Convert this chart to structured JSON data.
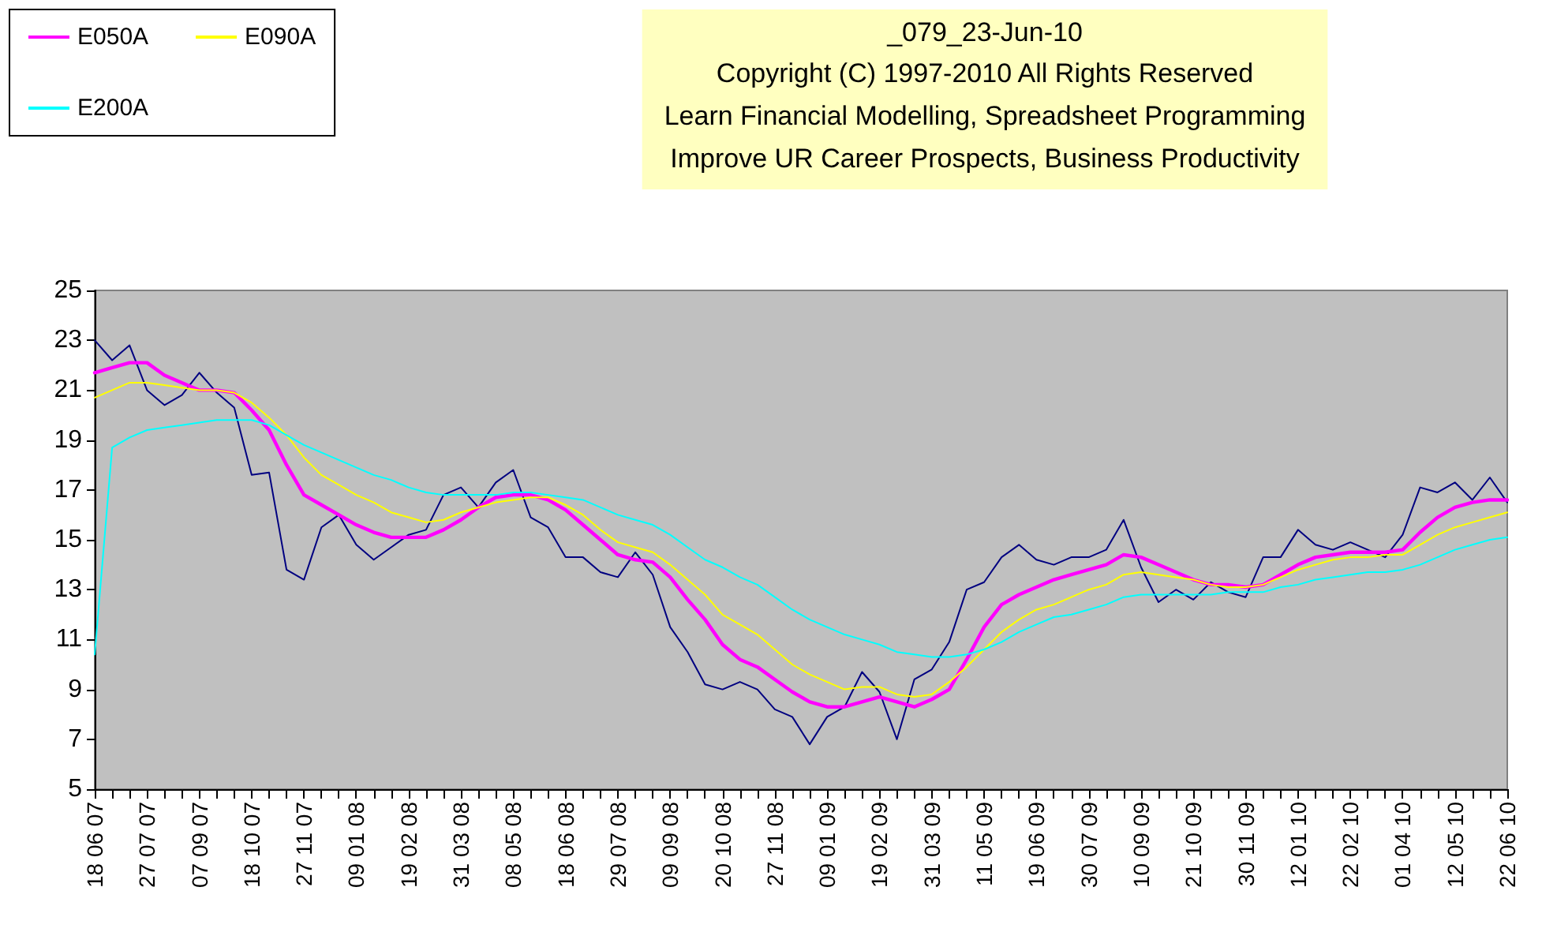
{
  "chart_data": {
    "type": "line",
    "title": "_079_23-Jun-10",
    "subtitle": "Copyright (C) 1997-2010 All Rights Reserved\nLearn Financial Modelling, Spreadsheet Programming\nImprove UR Career Prospects, Business Productivity",
    "categories": [
      "18 06 07",
      null,
      null,
      "27 07 07",
      null,
      null,
      "07 09 07",
      null,
      null,
      "18 10 07",
      null,
      null,
      "27 11 07",
      null,
      null,
      "09 01 08",
      null,
      null,
      "19 02 08",
      null,
      null,
      "31 03 08",
      null,
      null,
      "08 05 08",
      null,
      null,
      "18 06 08",
      null,
      null,
      "29 07 08",
      null,
      null,
      "09 09 08",
      null,
      null,
      "20 10 08",
      null,
      null,
      "27 11 08",
      null,
      null,
      "09 01 09",
      null,
      null,
      "19 02 09",
      null,
      null,
      "31 03 09",
      null,
      null,
      "11 05 09",
      null,
      null,
      "19 06 09",
      null,
      null,
      "30 07 09",
      null,
      null,
      "10 09 09",
      null,
      null,
      "21 10 09",
      null,
      null,
      "30 11 09",
      null,
      null,
      "12 01 10",
      null,
      null,
      "22 02 10",
      null,
      null,
      "01 04 10",
      null,
      null,
      "12 05 10",
      null,
      null,
      "22 06 10"
    ],
    "series": [
      {
        "color": "#000080",
        "values": [
          23.0,
          22.2,
          22.8,
          21.0,
          20.4,
          20.8,
          21.7,
          20.9,
          20.3,
          17.6,
          17.7,
          13.8,
          13.4,
          15.5,
          16.0,
          14.8,
          14.2,
          14.7,
          15.2,
          15.4,
          16.8,
          17.1,
          16.3,
          17.3,
          17.8,
          15.9,
          15.5,
          14.3,
          14.3,
          13.7,
          13.5,
          14.5,
          13.6,
          11.5,
          10.5,
          9.2,
          9.0,
          9.3,
          9.0,
          8.2,
          7.9,
          6.8,
          7.9,
          8.3,
          9.7,
          8.9,
          7.0,
          9.4,
          9.8,
          10.9,
          13.0,
          13.3,
          14.3,
          14.8,
          14.2,
          14.0,
          14.3,
          14.3,
          14.6,
          15.8,
          13.9,
          12.5,
          13.0,
          12.6,
          13.3,
          12.9,
          12.7,
          14.3,
          14.3,
          15.4,
          14.8,
          14.6,
          14.9,
          14.6,
          14.3,
          15.2,
          17.1,
          16.9,
          17.3,
          16.6,
          17.5,
          16.5
        ]
      },
      {
        "name": "E050A",
        "color": "#ff00ff",
        "values": [
          21.7,
          21.9,
          22.1,
          22.1,
          21.6,
          21.3,
          21.0,
          21.0,
          20.9,
          20.2,
          19.4,
          18.0,
          16.8,
          16.4,
          16.0,
          15.6,
          15.3,
          15.1,
          15.1,
          15.1,
          15.4,
          15.8,
          16.3,
          16.7,
          16.8,
          16.8,
          16.6,
          16.2,
          15.6,
          15.0,
          14.4,
          14.2,
          14.1,
          13.5,
          12.6,
          11.8,
          10.8,
          10.2,
          9.9,
          9.4,
          8.9,
          8.5,
          8.3,
          8.3,
          8.5,
          8.7,
          8.5,
          8.3,
          8.6,
          9.0,
          10.2,
          11.5,
          12.4,
          12.8,
          13.1,
          13.4,
          13.6,
          13.8,
          14.0,
          14.4,
          14.3,
          14.0,
          13.7,
          13.4,
          13.2,
          13.2,
          13.1,
          13.2,
          13.6,
          14.0,
          14.3,
          14.4,
          14.5,
          14.5,
          14.5,
          14.6,
          15.3,
          15.9,
          16.3,
          16.5,
          16.6,
          16.6
        ]
      },
      {
        "name": "E090A",
        "color": "#ffff00",
        "values": [
          20.7,
          21.0,
          21.3,
          21.3,
          21.2,
          21.1,
          21.0,
          21.0,
          20.9,
          20.5,
          19.9,
          19.2,
          18.3,
          17.6,
          17.2,
          16.8,
          16.5,
          16.1,
          15.9,
          15.7,
          15.8,
          16.1,
          16.3,
          16.5,
          16.6,
          16.7,
          16.7,
          16.4,
          16.0,
          15.4,
          14.9,
          14.7,
          14.5,
          14.0,
          13.4,
          12.8,
          12.0,
          11.6,
          11.2,
          10.6,
          10.0,
          9.6,
          9.3,
          9.0,
          9.1,
          9.1,
          8.8,
          8.7,
          8.8,
          9.3,
          9.9,
          10.6,
          11.3,
          11.8,
          12.2,
          12.4,
          12.7,
          13.0,
          13.2,
          13.6,
          13.7,
          13.6,
          13.5,
          13.4,
          13.2,
          13.1,
          13.1,
          13.2,
          13.5,
          13.8,
          14.0,
          14.2,
          14.3,
          14.3,
          14.4,
          14.4,
          14.8,
          15.2,
          15.5,
          15.7,
          15.9,
          16.1
        ]
      },
      {
        "name": "E200A",
        "color": "#00ffff",
        "values": [
          10.4,
          18.7,
          19.1,
          19.4,
          19.5,
          19.6,
          19.7,
          19.8,
          19.8,
          19.8,
          19.6,
          19.2,
          18.8,
          18.5,
          18.2,
          17.9,
          17.6,
          17.4,
          17.1,
          16.9,
          16.8,
          16.8,
          16.8,
          16.8,
          16.9,
          16.9,
          16.8,
          16.7,
          16.6,
          16.3,
          16.0,
          15.8,
          15.6,
          15.2,
          14.7,
          14.2,
          13.9,
          13.5,
          13.2,
          12.7,
          12.2,
          11.8,
          11.5,
          11.2,
          11.0,
          10.8,
          10.5,
          10.4,
          10.3,
          10.3,
          10.4,
          10.6,
          10.9,
          11.3,
          11.6,
          11.9,
          12.0,
          12.2,
          12.4,
          12.7,
          12.8,
          12.8,
          12.8,
          12.8,
          12.8,
          12.9,
          12.9,
          12.9,
          13.1,
          13.2,
          13.4,
          13.5,
          13.6,
          13.7,
          13.7,
          13.8,
          14.0,
          14.3,
          14.6,
          14.8,
          15.0,
          15.1
        ]
      }
    ],
    "ylim": [
      5,
      25
    ],
    "yticks": [
      5,
      7,
      9,
      11,
      13,
      15,
      17,
      19,
      21,
      23,
      25
    ],
    "grid": false,
    "legend": "top left",
    "marker": "none",
    "line_style": "solid"
  }
}
